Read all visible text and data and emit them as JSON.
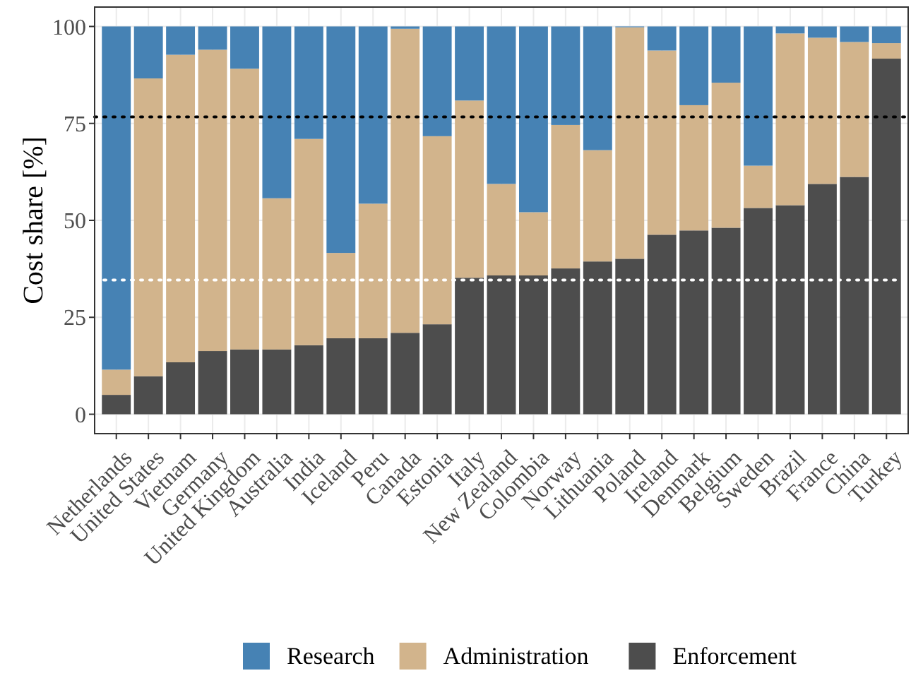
{
  "chart_data": {
    "type": "bar",
    "stacked": true,
    "ylabel": "Cost share [%]",
    "categories": [
      "Netherlands",
      "United States",
      "Vietnam",
      "Germany",
      "United Kingdom",
      "Australia",
      "India",
      "Iceland",
      "Peru",
      "Canada",
      "Estonia",
      "Italy",
      "New Zealand",
      "Colombia",
      "Norway",
      "Lithuania",
      "Poland",
      "Ireland",
      "Denmark",
      "Belgium",
      "Sweden",
      "Brazil",
      "France",
      "China",
      "Turkey"
    ],
    "series": [
      {
        "name": "Enforcement",
        "color": "#4d4d4d",
        "values": [
          5.0,
          9.8,
          13.4,
          16.3,
          16.7,
          16.7,
          17.8,
          19.6,
          19.6,
          21.0,
          23.2,
          35.2,
          35.8,
          35.8,
          37.6,
          39.4,
          40.1,
          46.3,
          47.4,
          48.1,
          53.2,
          53.9,
          59.4,
          61.2,
          91.7
        ]
      },
      {
        "name": "Administration",
        "color": "#d2b48c",
        "values": [
          6.5,
          76.8,
          79.3,
          77.7,
          72.4,
          39.0,
          53.2,
          22.0,
          34.7,
          78.4,
          48.5,
          45.7,
          23.6,
          16.3,
          37.0,
          28.7,
          59.7,
          47.5,
          32.3,
          37.4,
          10.9,
          44.3,
          37.7,
          34.8,
          4.0
        ]
      },
      {
        "name": "Research",
        "color": "#4682b4",
        "values": [
          88.5,
          13.4,
          7.3,
          6.0,
          10.9,
          44.3,
          29.0,
          58.4,
          45.7,
          0.6,
          28.3,
          19.1,
          40.6,
          47.9,
          25.4,
          31.9,
          0.2,
          6.2,
          20.3,
          14.5,
          35.9,
          1.8,
          2.9,
          4.0,
          4.3
        ]
      }
    ],
    "ylim": [
      -5,
      105
    ],
    "yticks": [
      0,
      25,
      50,
      75,
      100
    ],
    "grid": true,
    "legend": "bottom",
    "ref_lines": [
      {
        "axis": "y",
        "value": 76.7,
        "color": "#000000",
        "line_style": "dotted"
      },
      {
        "axis": "y",
        "value": 34.6,
        "color": "#ffffff",
        "line_style": "dotted"
      }
    ]
  }
}
